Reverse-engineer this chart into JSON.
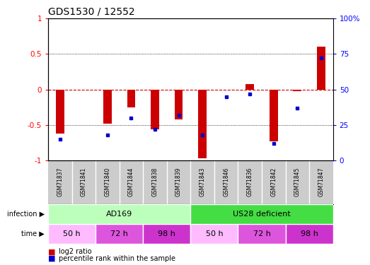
{
  "title": "GDS1530 / 12552",
  "samples": [
    "GSM71837",
    "GSM71841",
    "GSM71840",
    "GSM71844",
    "GSM71838",
    "GSM71839",
    "GSM71843",
    "GSM71846",
    "GSM71836",
    "GSM71842",
    "GSM71845",
    "GSM71847"
  ],
  "log2_ratio": [
    -0.62,
    0.0,
    -0.48,
    -0.25,
    -0.56,
    -0.42,
    -0.97,
    0.0,
    0.08,
    -0.73,
    -0.02,
    0.6
  ],
  "percentile_rank": [
    15,
    null,
    18,
    30,
    22,
    32,
    18,
    45,
    47,
    12,
    37,
    72
  ],
  "bar_color": "#cc0000",
  "dot_color": "#0000cc",
  "ylim_left": [
    -1,
    1
  ],
  "ylim_right": [
    0,
    100
  ],
  "yticks_left": [
    -1,
    -0.5,
    0,
    0.5,
    1
  ],
  "yticks_right": [
    0,
    25,
    50,
    75,
    100
  ],
  "ytick_labels_right": [
    "0",
    "25",
    "50",
    "75",
    "100%"
  ],
  "infection_groups": [
    {
      "label": "AD169",
      "start": 0,
      "end": 6,
      "color": "#bbffbb"
    },
    {
      "label": "US28 deficient",
      "start": 6,
      "end": 12,
      "color": "#44dd44"
    }
  ],
  "time_groups": [
    {
      "label": "50 h",
      "start": 0,
      "end": 2,
      "color": "#ffbbff"
    },
    {
      "label": "72 h",
      "start": 2,
      "end": 4,
      "color": "#dd55dd"
    },
    {
      "label": "98 h",
      "start": 4,
      "end": 6,
      "color": "#cc33cc"
    },
    {
      "label": "50 h",
      "start": 6,
      "end": 8,
      "color": "#ffbbff"
    },
    {
      "label": "72 h",
      "start": 8,
      "end": 10,
      "color": "#dd55dd"
    },
    {
      "label": "98 h",
      "start": 10,
      "end": 12,
      "color": "#cc33cc"
    }
  ],
  "zero_line_color": "#cc0000",
  "background_sample": "#cccccc",
  "bar_width": 0.35
}
